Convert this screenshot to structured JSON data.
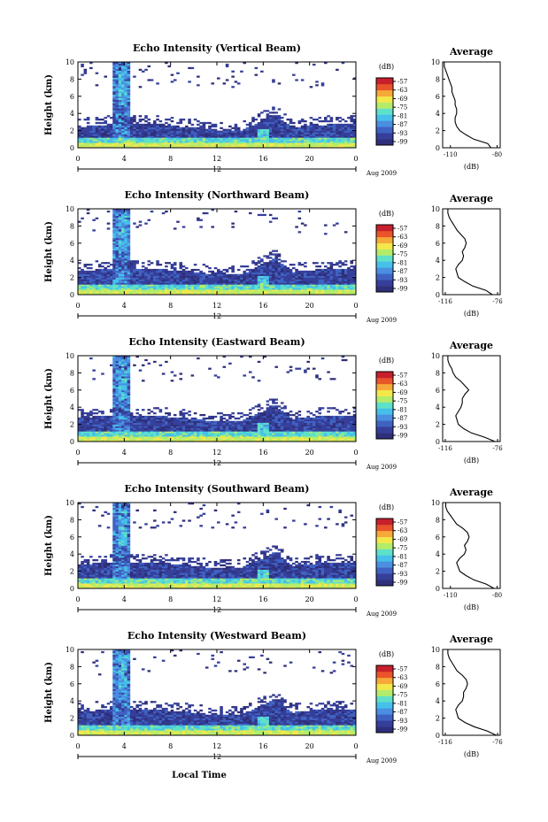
{
  "common": {
    "x_ticks": [
      "0",
      "4",
      "8",
      "12",
      "16",
      "20",
      "0"
    ],
    "y_ticks": [
      "0",
      "2",
      "4",
      "6",
      "8",
      "10"
    ],
    "ylabel": "Height (km)",
    "date_tick": "12",
    "date_label": "Aug 2009",
    "xlabel": "Local Time",
    "colorbar_unit": "(dB)",
    "colorbar_ticks": [
      "-57",
      "-63",
      "-69",
      "-75",
      "-81",
      "-87",
      "-93",
      "-99"
    ],
    "colorbar_colors": [
      "#2e2f7a",
      "#353f9a",
      "#3f62c2",
      "#4a8fe0",
      "#45c0ea",
      "#5fe0c8",
      "#b3ec6a",
      "#f2e84a",
      "#f5a938",
      "#e9542b",
      "#c7202c"
    ],
    "average_title": "Average",
    "average_xlabel": "(dB)",
    "average_yticks": [
      "0",
      "2",
      "4",
      "6",
      "8",
      "10"
    ]
  },
  "chart_data": [
    {
      "type": "heatmap",
      "title": "Echo Intensity (Vertical Beam)",
      "xlabel": "Local Time",
      "ylabel": "Height (km)",
      "xlim": [
        0,
        24
      ],
      "ylim": [
        0,
        10
      ],
      "zlim": [
        -99,
        -57
      ],
      "average": {
        "type": "line",
        "title": "Average",
        "xlabel": "(dB)",
        "xticks": [
          "-110",
          "-80"
        ],
        "xlim": [
          -115,
          -78
        ],
        "ylim": [
          0,
          10
        ],
        "x": [
          -84,
          -86,
          -95,
          -100,
          -104,
          -106,
          -107,
          -107,
          -106,
          -106,
          -107,
          -107,
          -108,
          -109,
          -109,
          -110,
          -111,
          -112,
          -113,
          -114,
          -114
        ],
        "y": [
          0,
          0.5,
          1,
          1.5,
          2,
          2.5,
          3,
          3.5,
          4,
          4.5,
          5,
          5.5,
          6,
          6.5,
          7,
          7.5,
          8,
          8.5,
          9,
          9.5,
          10
        ]
      }
    },
    {
      "type": "heatmap",
      "title": "Echo Intensity (Northward Beam)",
      "xlabel": "Local Time",
      "ylabel": "Height (km)",
      "xlim": [
        0,
        24
      ],
      "ylim": [
        0,
        10
      ],
      "zlim": [
        -99,
        -57
      ],
      "average": {
        "type": "line",
        "title": "Average",
        "xlabel": "(dB)",
        "xticks": [
          "-116",
          "-76"
        ],
        "xlim": [
          -118,
          -74
        ],
        "ylim": [
          0,
          10
        ],
        "x": [
          -80,
          -85,
          -95,
          -101,
          -106,
          -107,
          -108,
          -106,
          -103,
          -102,
          -103,
          -101,
          -100,
          -101,
          -104,
          -107,
          -109,
          -111,
          -113,
          -114,
          -114
        ],
        "y": [
          0,
          0.5,
          1,
          1.5,
          2,
          2.5,
          3,
          3.5,
          4,
          4.5,
          5,
          5.5,
          6,
          6.5,
          7,
          7.5,
          8,
          8.5,
          9,
          9.5,
          10
        ]
      }
    },
    {
      "type": "heatmap",
      "title": "Echo Intensity (Eastward Beam)",
      "xlabel": "Local Time",
      "ylabel": "Height (km)",
      "xlim": [
        0,
        24
      ],
      "ylim": [
        0,
        10
      ],
      "zlim": [
        -99,
        -57
      ],
      "average": {
        "type": "line",
        "title": "Average",
        "xlabel": "(dB)",
        "xticks": [
          "-116",
          "-76"
        ],
        "xlim": [
          -118,
          -74
        ],
        "ylim": [
          0,
          10
        ],
        "x": [
          -78,
          -86,
          -96,
          -102,
          -106,
          -107,
          -108,
          -106,
          -104,
          -103,
          -103,
          -101,
          -98,
          -101,
          -104,
          -108,
          -110,
          -111,
          -113,
          -114,
          -114
        ],
        "y": [
          0,
          0.5,
          1,
          1.5,
          2,
          2.5,
          3,
          3.5,
          4,
          4.5,
          5,
          5.5,
          6,
          6.5,
          7,
          7.5,
          8,
          8.5,
          9,
          9.5,
          10
        ]
      }
    },
    {
      "type": "heatmap",
      "title": "Echo Intensity (Southward Beam)",
      "xlabel": "Local Time",
      "ylabel": "Height (km)",
      "xlim": [
        0,
        24
      ],
      "ylim": [
        0,
        10
      ],
      "zlim": [
        -99,
        -57
      ],
      "average": {
        "type": "line",
        "title": "Average",
        "xlabel": "(dB)",
        "xticks": [
          "-110",
          "-80"
        ],
        "xlim": [
          -115,
          -78
        ],
        "ylim": [
          0,
          10
        ],
        "x": [
          -82,
          -87,
          -95,
          -100,
          -104,
          -105,
          -106,
          -104,
          -101,
          -100,
          -101,
          -99,
          -98,
          -99,
          -102,
          -106,
          -108,
          -110,
          -112,
          -113,
          -113
        ],
        "y": [
          0,
          0.5,
          1,
          1.5,
          2,
          2.5,
          3,
          3.5,
          4,
          4.5,
          5,
          5.5,
          6,
          6.5,
          7,
          7.5,
          8,
          8.5,
          9,
          9.5,
          10
        ]
      }
    },
    {
      "type": "heatmap",
      "title": "Echo Intensity (Westward Beam)",
      "xlabel": "Local Time",
      "ylabel": "Height (km)",
      "xlim": [
        0,
        24
      ],
      "ylim": [
        0,
        10
      ],
      "zlim": [
        -99,
        -57
      ],
      "average": {
        "type": "line",
        "title": "Average",
        "xlabel": "(dB)",
        "xticks": [
          "-116",
          "-76"
        ],
        "xlim": [
          -118,
          -74
        ],
        "ylim": [
          0,
          10
        ],
        "x": [
          -77,
          -84,
          -94,
          -101,
          -106,
          -107,
          -108,
          -106,
          -103,
          -102,
          -102,
          -100,
          -99,
          -100,
          -103,
          -107,
          -109,
          -111,
          -113,
          -114,
          -114
        ],
        "y": [
          0,
          0.5,
          1,
          1.5,
          2,
          2.5,
          3,
          3.5,
          4,
          4.5,
          5,
          5.5,
          6,
          6.5,
          7,
          7.5,
          8,
          8.5,
          9,
          9.5,
          10
        ]
      }
    }
  ]
}
